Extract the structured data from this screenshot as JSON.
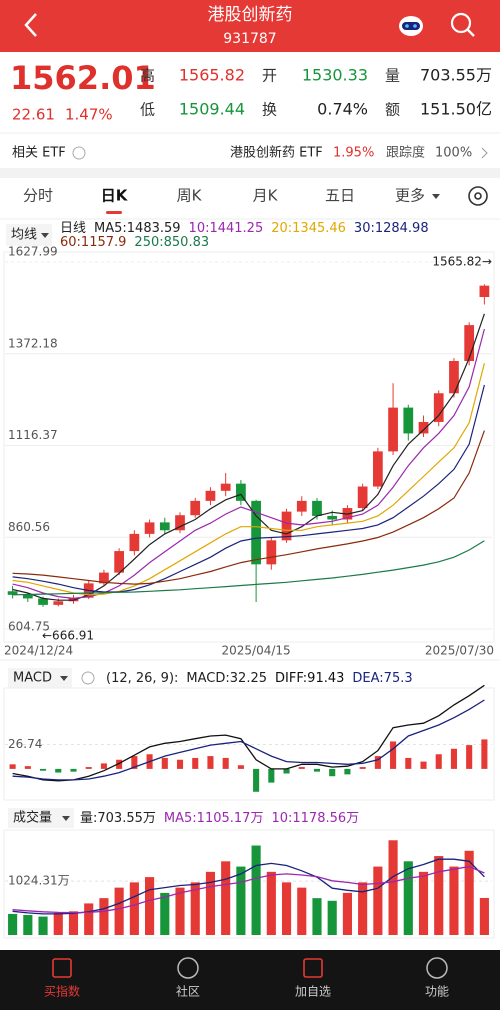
{
  "header": {
    "title": "港股创新药",
    "code": "931787"
  },
  "quote": {
    "price": "1562.01",
    "change": "22.61",
    "change_pct": "1.47%",
    "fields": [
      {
        "label": "高",
        "value": "1565.82",
        "color": "#e0302b"
      },
      {
        "label": "开",
        "value": "1530.33",
        "color": "#17953a"
      },
      {
        "label": "量",
        "value": "703.55万",
        "color": "#222222"
      },
      {
        "label": "低",
        "value": "1509.44",
        "color": "#17953a"
      },
      {
        "label": "换",
        "value": "0.74%",
        "color": "#222222"
      },
      {
        "label": "额",
        "value": "151.50亿",
        "color": "#222222"
      }
    ]
  },
  "etf": {
    "label": "相关 ETF",
    "name": "港股创新药 ETF",
    "change": "1.95%",
    "tracking_label": "跟踪度",
    "tracking": "100%"
  },
  "tabs": [
    "分时",
    "日K",
    "周K",
    "月K",
    "五日",
    "更多"
  ],
  "indicator_dropdown": "均线",
  "chart_data": [
    {
      "type": "candlestick",
      "period": "日线",
      "up_color": "#e53935",
      "down_color": "#17953a",
      "ohlc": [
        [
          710,
          725,
          690,
          700
        ],
        [
          700,
          705,
          680,
          690
        ],
        [
          690,
          695,
          666.91,
          672
        ],
        [
          672,
          690,
          668,
          682
        ],
        [
          682,
          700,
          675,
          692
        ],
        [
          692,
          740,
          688,
          732
        ],
        [
          732,
          770,
          725,
          762
        ],
        [
          762,
          830,
          755,
          822
        ],
        [
          822,
          880,
          810,
          870
        ],
        [
          870,
          910,
          860,
          902
        ],
        [
          902,
          915,
          870,
          880
        ],
        [
          880,
          930,
          872,
          922
        ],
        [
          922,
          970,
          915,
          962
        ],
        [
          962,
          1000,
          950,
          990
        ],
        [
          990,
          1040,
          975,
          1010
        ],
        [
          1010,
          1020,
          950,
          962
        ],
        [
          962,
          965,
          680,
          785
        ],
        [
          785,
          860,
          770,
          852
        ],
        [
          852,
          940,
          845,
          932
        ],
        [
          932,
          975,
          920,
          962
        ],
        [
          962,
          970,
          910,
          920
        ],
        [
          920,
          935,
          895,
          910
        ],
        [
          910,
          950,
          900,
          942
        ],
        [
          942,
          1010,
          935,
          1002
        ],
        [
          1002,
          1110,
          995,
          1100
        ],
        [
          1100,
          1290,
          1090,
          1222
        ],
        [
          1222,
          1230,
          1130,
          1150
        ],
        [
          1150,
          1200,
          1140,
          1182
        ],
        [
          1182,
          1270,
          1170,
          1262
        ],
        [
          1262,
          1360,
          1250,
          1352
        ],
        [
          1352,
          1460,
          1340,
          1452
        ],
        [
          1530.33,
          1565.82,
          1509.44,
          1562.01
        ]
      ],
      "series": [
        {
          "name": "MA5:",
          "color": "#222222",
          "values": [
            715,
            705,
            690,
            685,
            685,
            700,
            725,
            760,
            800,
            840,
            870,
            890,
            910,
            940,
            965,
            980,
            920,
            880,
            870,
            890,
            920,
            930,
            925,
            935,
            980,
            1060,
            1120,
            1160,
            1200,
            1260,
            1360,
            1483.59
          ]
        },
        {
          "name": "10:",
          "color": "#9c27b0",
          "values": [
            730,
            720,
            705,
            695,
            690,
            695,
            705,
            725,
            755,
            790,
            820,
            850,
            880,
            900,
            925,
            945,
            930,
            915,
            900,
            895,
            900,
            905,
            915,
            925,
            950,
            1000,
            1060,
            1110,
            1150,
            1200,
            1280,
            1441.25
          ]
        },
        {
          "name": "20:",
          "color": "#e0a800",
          "values": [
            740,
            735,
            725,
            715,
            705,
            700,
            702,
            710,
            725,
            745,
            770,
            795,
            820,
            845,
            870,
            890,
            890,
            885,
            880,
            880,
            890,
            895,
            900,
            905,
            920,
            950,
            990,
            1030,
            1070,
            1110,
            1180,
            1345.46
          ]
        },
        {
          "name": "30:",
          "color": "#1a237e",
          "values": [
            750,
            745,
            738,
            730,
            720,
            712,
            708,
            708,
            715,
            728,
            745,
            765,
            785,
            805,
            830,
            850,
            858,
            860,
            862,
            865,
            870,
            875,
            880,
            885,
            895,
            915,
            945,
            975,
            1010,
            1050,
            1120,
            1284.98
          ]
        },
        {
          "name": "60:",
          "color": "#8b2a0a",
          "values": [
            760,
            758,
            755,
            750,
            745,
            740,
            735,
            732,
            730,
            732,
            738,
            745,
            755,
            765,
            778,
            790,
            798,
            805,
            812,
            820,
            828,
            835,
            842,
            850,
            860,
            875,
            895,
            915,
            940,
            970,
            1040,
            1157.9
          ]
        },
        {
          "name": "250:",
          "color": "#1b7a4a",
          "values": [
            700,
            701,
            702,
            703,
            704,
            705,
            706,
            707,
            708,
            710,
            712,
            714,
            717,
            720,
            723,
            726,
            729,
            732,
            735,
            739,
            743,
            747,
            752,
            757,
            763,
            769,
            776,
            783,
            792,
            805,
            825,
            850.83
          ]
        }
      ],
      "categories": [
        "2024/12/24",
        null,
        null,
        null,
        null,
        null,
        null,
        null,
        null,
        null,
        null,
        null,
        null,
        null,
        null,
        null,
        "2025/04/15",
        null,
        null,
        null,
        null,
        null,
        null,
        null,
        null,
        null,
        null,
        null,
        null,
        null,
        null,
        "2025/07/30"
      ],
      "ylim": [
        604.75,
        1627.99
      ],
      "yticks": [
        604.75,
        860.56,
        1116.37,
        1372.18,
        1627.99
      ],
      "annotations": [
        "1565.82→",
        "←666.91"
      ]
    },
    {
      "type": "macd",
      "title": "MACD",
      "params": "(12, 26, 9):",
      "series": [
        {
          "name": "MACD:",
          "color": "#222222",
          "up_color": "#e53935",
          "down_color": "#17953a",
          "values": [
            5,
            3,
            -2,
            -4,
            -3,
            2,
            6,
            10,
            14,
            16,
            12,
            10,
            12,
            14,
            12,
            4,
            -25,
            -15,
            -5,
            2,
            -3,
            -8,
            -6,
            2,
            14,
            30,
            12,
            8,
            16,
            22,
            26,
            32.25
          ]
        },
        {
          "name": "DIFF:",
          "color": "#111111",
          "values": [
            -5,
            -8,
            -12,
            -13,
            -12,
            -8,
            -2,
            6,
            15,
            24,
            28,
            30,
            33,
            36,
            37,
            33,
            10,
            0,
            0,
            5,
            5,
            2,
            3,
            8,
            20,
            45,
            48,
            50,
            58,
            70,
            80,
            91.43
          ]
        },
        {
          "name": "DEA:",
          "color": "#1a237e",
          "values": [
            -8,
            -9,
            -11,
            -12,
            -12,
            -11,
            -8,
            -4,
            2,
            8,
            14,
            18,
            22,
            26,
            28,
            30,
            22,
            14,
            8,
            7,
            7,
            6,
            5,
            6,
            10,
            22,
            36,
            42,
            48,
            56,
            65,
            75.3
          ]
        }
      ],
      "ylim": [
        -34,
        95
      ],
      "yticks": [
        26.74
      ]
    },
    {
      "type": "volume",
      "title": "成交量",
      "unit": "万",
      "series": [
        {
          "name": "量:",
          "color": "#222222",
          "values": [
            400,
            380,
            350,
            420,
            450,
            600,
            700,
            900,
            1000,
            1100,
            800,
            900,
            1000,
            1200,
            1400,
            1300,
            1700,
            1200,
            1000,
            900,
            700,
            650,
            800,
            1000,
            1300,
            1800,
            1400,
            1200,
            1500,
            1300,
            1600,
            703.55
          ]
        },
        {
          "name": "MA5:",
          "color": "#1a237e",
          "values": [
            450,
            420,
            400,
            400,
            410,
            440,
            500,
            600,
            730,
            860,
            900,
            940,
            960,
            1000,
            1060,
            1160,
            1320,
            1360,
            1320,
            1220,
            1100,
            890,
            850,
            820,
            890,
            1110,
            1260,
            1340,
            1440,
            1440,
            1400,
            1105.17
          ]
        },
        {
          "name": "10:",
          "color": "#9c27b0",
          "values": [
            480,
            460,
            440,
            430,
            425,
            430,
            450,
            500,
            570,
            660,
            720,
            800,
            860,
            920,
            960,
            1000,
            1080,
            1140,
            1160,
            1140,
            1110,
            1030,
            1000,
            960,
            980,
            1010,
            1080,
            1120,
            1200,
            1250,
            1300,
            1178.56
          ]
        }
      ],
      "ylim": [
        0,
        1900
      ],
      "yticks": [
        {
          "value": 1024.31,
          "label": "1024.31万"
        }
      ]
    }
  ],
  "nav": [
    "买指数",
    "社区",
    "加自选",
    "功能"
  ]
}
